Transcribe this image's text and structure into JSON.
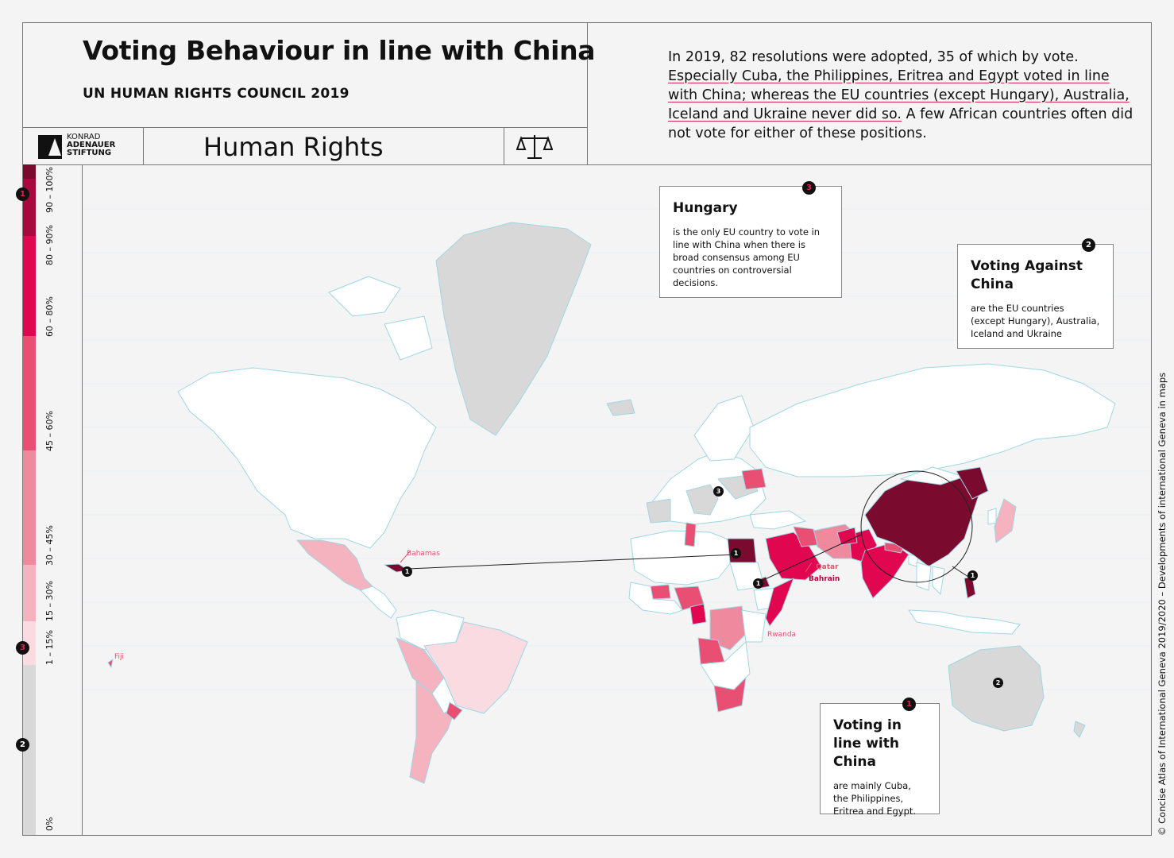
{
  "header": {
    "title": "Voting Behaviour in line with China",
    "subtitle": "UN HUMAN RIGHTS COUNCIL 2019",
    "topic": "Human Rights",
    "logo_lines": [
      "KONRAD",
      "ADENAUER",
      "STIFTUNG"
    ],
    "intro_plain_1": "In 2019, 82 resolutions were adopted, 35 of which by vote.",
    "intro_underlined_1": "Especially Cuba, the Philippines, Eritrea and Egypt voted in line with China",
    "intro_plain_2": "; whereas the EU countries (except Hungary), Australia, Iceland and Ukraine never did so.",
    "intro_plain_3": " A few African countries often did not vote for either of these positions."
  },
  "legend": {
    "classes": [
      {
        "label": "90 – 100%",
        "color": "#7a0a2e"
      },
      {
        "label": "80 – 90%",
        "color": "#a8083d"
      },
      {
        "label": "60 – 80%",
        "color": "#e0064f"
      },
      {
        "label": "45 – 60%",
        "color": "#e84f72"
      },
      {
        "label": "30 – 45%",
        "color": "#ef8a9e"
      },
      {
        "label": "15 – 30%",
        "color": "#f4b3bf"
      },
      {
        "label": "1 – 15%",
        "color": "#fadbe1"
      },
      {
        "label": "0%",
        "color": "#d8d8d8"
      }
    ]
  },
  "callouts": {
    "hungary": {
      "marker": "3",
      "title": "Hungary",
      "text": "is the only EU country to vote in line with China when there is broad consensus among EU countries on controversial decisions."
    },
    "against": {
      "marker": "2",
      "title": "Voting Against China",
      "text": "are the EU countries (except Hungary), Australia, Iceland and Ukraine"
    },
    "inline": {
      "marker": "1",
      "title": "Voting in line with China",
      "text": "are mainly Cuba, the Philippines, Eritrea and Egypt."
    }
  },
  "map_labels": {
    "bahamas": "Bahamas",
    "fiji": "Fiji",
    "qatar": "Qatar",
    "bahrain": "Bahrain",
    "rwanda": "Rwanda"
  },
  "markers": {
    "one": "1",
    "two": "2",
    "three": "3"
  },
  "credit": "© Concise Atlas of International Geneva 2019/2020 – Developments of international Geneva in maps"
}
